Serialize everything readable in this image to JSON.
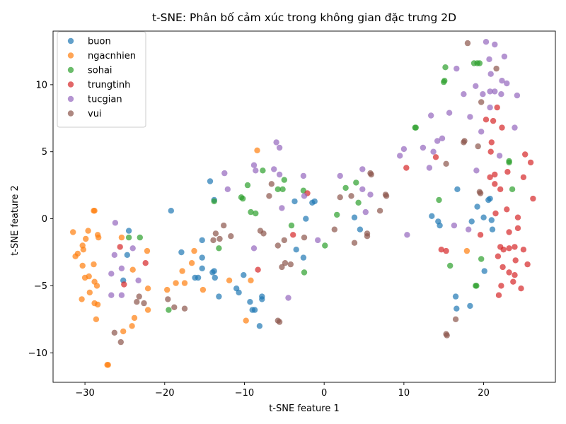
{
  "chart_data": {
    "type": "scatter",
    "title": "t-SNE: Phân bố cảm xúc trong không gian đặc trưng 2D",
    "xlabel": "t-SNE feature 1",
    "ylabel": "t-SNE feature 2",
    "xlim": [
      -34,
      29
    ],
    "ylim": [
      -12.2,
      14.0
    ],
    "xticks": [
      -30,
      -20,
      -10,
      0,
      10,
      20
    ],
    "yticks": [
      -10,
      -5,
      0,
      5,
      10
    ],
    "xtick_labels": [
      "−30",
      "−20",
      "−10",
      "0",
      "10",
      "20"
    ],
    "ytick_labels": [
      "−10",
      "−5",
      "0",
      "5",
      "10"
    ],
    "grid": false,
    "legend_position": "upper-left",
    "series": [
      {
        "name": "buon",
        "color": "#1f77b4",
        "points": [
          [
            -19.2,
            0.6
          ],
          [
            -14.3,
            2.8
          ],
          [
            -13.8,
            1.4
          ],
          [
            -15.3,
            -1.6
          ],
          [
            -17.9,
            -2.5
          ],
          [
            -15.3,
            -2.9
          ],
          [
            -15.3,
            -3.7
          ],
          [
            -14.0,
            -4.0
          ],
          [
            -13.8,
            -3.9
          ],
          [
            -13.7,
            -4.4
          ],
          [
            -15.8,
            -4.4
          ],
          [
            -16.2,
            -4.4
          ],
          [
            -13.2,
            -5.8
          ],
          [
            -11.0,
            -5.2
          ],
          [
            -10.7,
            -5.5
          ],
          [
            -10.1,
            -4.2
          ],
          [
            -9.3,
            -6.2
          ],
          [
            -9.0,
            -6.8
          ],
          [
            -8.7,
            -6.8
          ],
          [
            -7.8,
            -5.8
          ],
          [
            -7.8,
            -6.0
          ],
          [
            -8.1,
            -8.0
          ],
          [
            -3.5,
            -2.3
          ],
          [
            -2.6,
            -2.9
          ],
          [
            -2.3,
            0.0
          ],
          [
            -1.5,
            1.2
          ],
          [
            -1.2,
            1.3
          ],
          [
            -3.7,
            1.3
          ],
          [
            3.8,
            0.1
          ],
          [
            4.5,
            -0.8
          ],
          [
            -24.5,
            -0.9
          ],
          [
            -24.7,
            -2.7
          ],
          [
            -25.2,
            -4.6
          ],
          [
            13.5,
            0.2
          ],
          [
            14.3,
            -0.2
          ],
          [
            14.5,
            -0.5
          ],
          [
            16.7,
            2.2
          ],
          [
            16.5,
            -5.8
          ],
          [
            16.6,
            -6.7
          ],
          [
            18.3,
            -6.5
          ],
          [
            18.5,
            -0.2
          ],
          [
            19.2,
            0.9
          ],
          [
            20.0,
            0.1
          ],
          [
            20.6,
            1.4
          ],
          [
            20.8,
            1.5
          ],
          [
            21.0,
            -0.1
          ],
          [
            21.1,
            -0.8
          ],
          [
            20.1,
            -3.9
          ]
        ]
      },
      {
        "name": "ngacnhien",
        "color": "#ff7f0e",
        "points": [
          [
            -31.5,
            -1.0
          ],
          [
            -31.2,
            -2.8
          ],
          [
            -30.9,
            -2.6
          ],
          [
            -30.3,
            -2.0
          ],
          [
            -30.2,
            -2.3
          ],
          [
            -29.9,
            -1.5
          ],
          [
            -29.6,
            -0.9
          ],
          [
            -30.3,
            -3.5
          ],
          [
            -30.0,
            -4.4
          ],
          [
            -29.5,
            -4.3
          ],
          [
            -29.4,
            -5.5
          ],
          [
            -28.9,
            -3.4
          ],
          [
            -28.9,
            0.6
          ],
          [
            -28.8,
            0.6
          ],
          [
            -28.5,
            -5.0
          ],
          [
            -28.4,
            -1.2
          ],
          [
            -28.3,
            -1.4
          ],
          [
            -28.8,
            -4.7
          ],
          [
            -28.8,
            -6.3
          ],
          [
            -28.6,
            -7.5
          ],
          [
            -28.4,
            -6.4
          ],
          [
            -30.4,
            -6.0
          ],
          [
            -27.2,
            -10.9
          ],
          [
            -27.1,
            -10.9
          ],
          [
            -25.4,
            -1.4
          ],
          [
            -24.0,
            -3.8
          ],
          [
            -23.8,
            -7.4
          ],
          [
            -24.1,
            -8.0
          ],
          [
            -25.2,
            -8.4
          ],
          [
            -22.2,
            -2.4
          ],
          [
            -22.1,
            -5.2
          ],
          [
            -22.1,
            -6.8
          ],
          [
            -19.7,
            -5.3
          ],
          [
            -18.6,
            -4.8
          ],
          [
            -17.8,
            -3.9
          ],
          [
            -17.5,
            -4.8
          ],
          [
            -16.6,
            -3.3
          ],
          [
            -16.3,
            -2.4
          ],
          [
            -15.2,
            -5.3
          ],
          [
            -11.9,
            -4.6
          ],
          [
            -9.2,
            -4.6
          ],
          [
            -9.8,
            -7.6
          ],
          [
            -8.4,
            5.1
          ],
          [
            17.9,
            -2.4
          ]
        ]
      },
      {
        "name": "sohai",
        "color": "#2ca02c",
        "points": [
          [
            -24.5,
            -1.4
          ],
          [
            -23.1,
            -1.4
          ],
          [
            -19.5,
            -6.8
          ],
          [
            -13.8,
            1.3
          ],
          [
            -13.2,
            -2.2
          ],
          [
            -10.4,
            1.6
          ],
          [
            -10.2,
            1.5
          ],
          [
            -9.6,
            2.5
          ],
          [
            -9.2,
            0.5
          ],
          [
            -8.6,
            0.4
          ],
          [
            -7.7,
            3.6
          ],
          [
            -5.8,
            2.2
          ],
          [
            -5.2,
            2.2
          ],
          [
            -5.0,
            2.9
          ],
          [
            -4.1,
            -0.5
          ],
          [
            -2.5,
            -4.0
          ],
          [
            -2.6,
            2.1
          ],
          [
            0.1,
            -2.0
          ],
          [
            1.6,
            0.3
          ],
          [
            2.7,
            2.3
          ],
          [
            4.0,
            2.7
          ],
          [
            4.3,
            1.2
          ],
          [
            11.4,
            6.8
          ],
          [
            11.5,
            6.8
          ],
          [
            14.4,
            1.4
          ],
          [
            15.0,
            10.2
          ],
          [
            15.1,
            10.3
          ],
          [
            15.2,
            11.3
          ],
          [
            15.8,
            -3.5
          ],
          [
            18.8,
            11.6
          ],
          [
            19.2,
            11.6
          ],
          [
            19.5,
            11.6
          ],
          [
            19.7,
            -3.0
          ],
          [
            19.0,
            -5.0
          ],
          [
            19.1,
            -5.0
          ],
          [
            23.2,
            4.2
          ],
          [
            23.2,
            4.3
          ],
          [
            23.6,
            2.2
          ]
        ]
      },
      {
        "name": "trungtinh",
        "color": "#d62728",
        "points": [
          [
            -25.6,
            -2.1
          ],
          [
            -25.1,
            -4.9
          ],
          [
            -22.4,
            -3.3
          ],
          [
            -8.3,
            -3.8
          ],
          [
            -3.9,
            -1.2
          ],
          [
            -2.1,
            1.9
          ],
          [
            10.3,
            3.8
          ],
          [
            14.0,
            4.6
          ],
          [
            14.7,
            -2.3
          ],
          [
            15.3,
            -2.4
          ],
          [
            19.6,
            -1.2
          ],
          [
            20.3,
            7.4
          ],
          [
            20.8,
            3.1
          ],
          [
            20.9,
            5.0
          ],
          [
            21.0,
            5.7
          ],
          [
            21.2,
            7.3
          ],
          [
            21.4,
            2.6
          ],
          [
            21.4,
            3.3
          ],
          [
            21.5,
            0.4
          ],
          [
            21.7,
            8.3
          ],
          [
            21.8,
            -2.8
          ],
          [
            21.9,
            -5.7
          ],
          [
            22.1,
            -2.1
          ],
          [
            22.1,
            2.2
          ],
          [
            22.2,
            -5.0
          ],
          [
            22.3,
            6.8
          ],
          [
            22.4,
            -3.6
          ],
          [
            22.5,
            -2.3
          ],
          [
            22.9,
            0.7
          ],
          [
            23.0,
            3.5
          ],
          [
            23.2,
            -1.0
          ],
          [
            23.2,
            -2.2
          ],
          [
            23.2,
            -4.0
          ],
          [
            23.7,
            -4.7
          ],
          [
            23.9,
            -2.1
          ],
          [
            23.9,
            -4.2
          ],
          [
            24.0,
            -3.1
          ],
          [
            24.3,
            0.1
          ],
          [
            24.3,
            -0.7
          ],
          [
            24.7,
            -5.2
          ],
          [
            25.0,
            -2.3
          ],
          [
            25.0,
            3.1
          ],
          [
            25.2,
            4.8
          ],
          [
            25.5,
            -3.4
          ],
          [
            25.9,
            4.2
          ],
          [
            26.2,
            1.5
          ]
        ]
      },
      {
        "name": "tucgian",
        "color": "#9467bd",
        "points": [
          [
            -26.2,
            -0.3
          ],
          [
            -26.3,
            -2.7
          ],
          [
            -25.4,
            -3.7
          ],
          [
            -25.4,
            -5.7
          ],
          [
            -26.7,
            -4.1
          ],
          [
            -26.7,
            -5.7
          ],
          [
            -24.0,
            -2.2
          ],
          [
            -23.3,
            -4.6
          ],
          [
            -12.5,
            3.4
          ],
          [
            -12.1,
            2.2
          ],
          [
            -8.8,
            4.0
          ],
          [
            -8.6,
            3.6
          ],
          [
            -8.8,
            -2.2
          ],
          [
            -6.3,
            3.7
          ],
          [
            -6.0,
            5.7
          ],
          [
            -5.6,
            5.3
          ],
          [
            -5.6,
            3.3
          ],
          [
            -5.3,
            0.8
          ],
          [
            -4.5,
            -5.9
          ],
          [
            -2.6,
            3.2
          ],
          [
            -2.5,
            1.7
          ],
          [
            -0.8,
            -1.6
          ],
          [
            2.0,
            3.2
          ],
          [
            4.8,
            2.2
          ],
          [
            4.8,
            3.7
          ],
          [
            5.2,
            0.5
          ],
          [
            5.8,
            1.8
          ],
          [
            9.5,
            4.7
          ],
          [
            10.0,
            5.2
          ],
          [
            10.4,
            -1.2
          ],
          [
            12.4,
            5.3
          ],
          [
            13.2,
            3.8
          ],
          [
            13.4,
            7.7
          ],
          [
            13.7,
            5.0
          ],
          [
            14.2,
            5.8
          ],
          [
            14.8,
            6.0
          ],
          [
            15.7,
            7.9
          ],
          [
            16.3,
            -0.5
          ],
          [
            16.6,
            11.2
          ],
          [
            17.5,
            9.3
          ],
          [
            18.1,
            -0.8
          ],
          [
            18.3,
            7.6
          ],
          [
            19.0,
            9.9
          ],
          [
            19.1,
            3.6
          ],
          [
            19.7,
            6.5
          ],
          [
            19.9,
            9.3
          ],
          [
            20.3,
            13.2
          ],
          [
            20.7,
            11.9
          ],
          [
            20.8,
            9.5
          ],
          [
            20.8,
            8.3
          ],
          [
            20.9,
            10.8
          ],
          [
            21.4,
            13.0
          ],
          [
            21.4,
            9.5
          ],
          [
            22.2,
            9.3
          ],
          [
            22.3,
            10.3
          ],
          [
            22.0,
            4.7
          ],
          [
            22.6,
            12.1
          ],
          [
            22.9,
            10.1
          ],
          [
            23.9,
            6.8
          ],
          [
            24.2,
            9.2
          ]
        ]
      },
      {
        "name": "vui",
        "color": "#8c564b",
        "points": [
          [
            -26.3,
            -8.5
          ],
          [
            -25.5,
            -9.2
          ],
          [
            -23.5,
            -6.2
          ],
          [
            -23.2,
            -5.8
          ],
          [
            -22.6,
            -6.3
          ],
          [
            -19.6,
            -6.0
          ],
          [
            -18.8,
            -6.6
          ],
          [
            -17.5,
            -6.7
          ],
          [
            -13.9,
            -1.6
          ],
          [
            -13.6,
            -1.1
          ],
          [
            -13.1,
            -1.5
          ],
          [
            -12.6,
            -0.5
          ],
          [
            -11.7,
            -1.3
          ],
          [
            -8.0,
            -0.9
          ],
          [
            -7.6,
            -1.1
          ],
          [
            -6.9,
            1.7
          ],
          [
            -6.6,
            2.6
          ],
          [
            -5.8,
            -2.0
          ],
          [
            -5.8,
            -7.6
          ],
          [
            -5.6,
            -7.7
          ],
          [
            -5.3,
            -3.6
          ],
          [
            -5.0,
            -1.6
          ],
          [
            -4.9,
            -3.3
          ],
          [
            -4.2,
            -3.4
          ],
          [
            -2.5,
            -1.4
          ],
          [
            1.3,
            -0.8
          ],
          [
            2.0,
            1.6
          ],
          [
            3.4,
            1.7
          ],
          [
            3.8,
            -1.8
          ],
          [
            5.4,
            -1.1
          ],
          [
            5.4,
            -1.3
          ],
          [
            5.8,
            3.4
          ],
          [
            5.9,
            3.3
          ],
          [
            7.0,
            0.6
          ],
          [
            7.7,
            1.8
          ],
          [
            7.8,
            1.7
          ],
          [
            15.3,
            4.1
          ],
          [
            15.3,
            -8.6
          ],
          [
            15.4,
            -8.7
          ],
          [
            16.5,
            -7.5
          ],
          [
            17.5,
            5.7
          ],
          [
            17.6,
            5.8
          ],
          [
            18.0,
            13.1
          ],
          [
            19.3,
            5.4
          ],
          [
            19.5,
            2.0
          ],
          [
            19.6,
            1.9
          ],
          [
            19.7,
            8.7
          ],
          [
            21.6,
            11.2
          ]
        ]
      }
    ]
  }
}
